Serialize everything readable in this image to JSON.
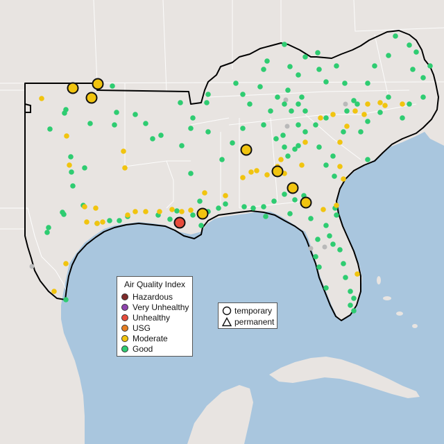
{
  "colors": {
    "ocean": "#a9c6de",
    "land": "#e8e4e1",
    "region_border": "#000000",
    "state_lines": "#ffffff"
  },
  "legend": {
    "title": "Air Quality Index",
    "items": [
      {
        "label": "Hazardous",
        "color": "#7e2a2a"
      },
      {
        "label": "Very Unhealthy",
        "color": "#8e44ad"
      },
      {
        "label": "Unhealthy",
        "color": "#e74c3c"
      },
      {
        "label": "USG",
        "color": "#e67e22"
      },
      {
        "label": "Moderate",
        "color": "#f1c40f"
      },
      {
        "label": "Good",
        "color": "#2ecc71"
      }
    ]
  },
  "monitor_types": {
    "temporary_label": "temporary",
    "permanent_label": "permanent"
  },
  "markers": {
    "good_color": "#2ecc71",
    "moderate_color": "#f1c40f",
    "unhealthy_color": "#e74c3c",
    "inactive_color": "#b9b9b9"
  }
}
